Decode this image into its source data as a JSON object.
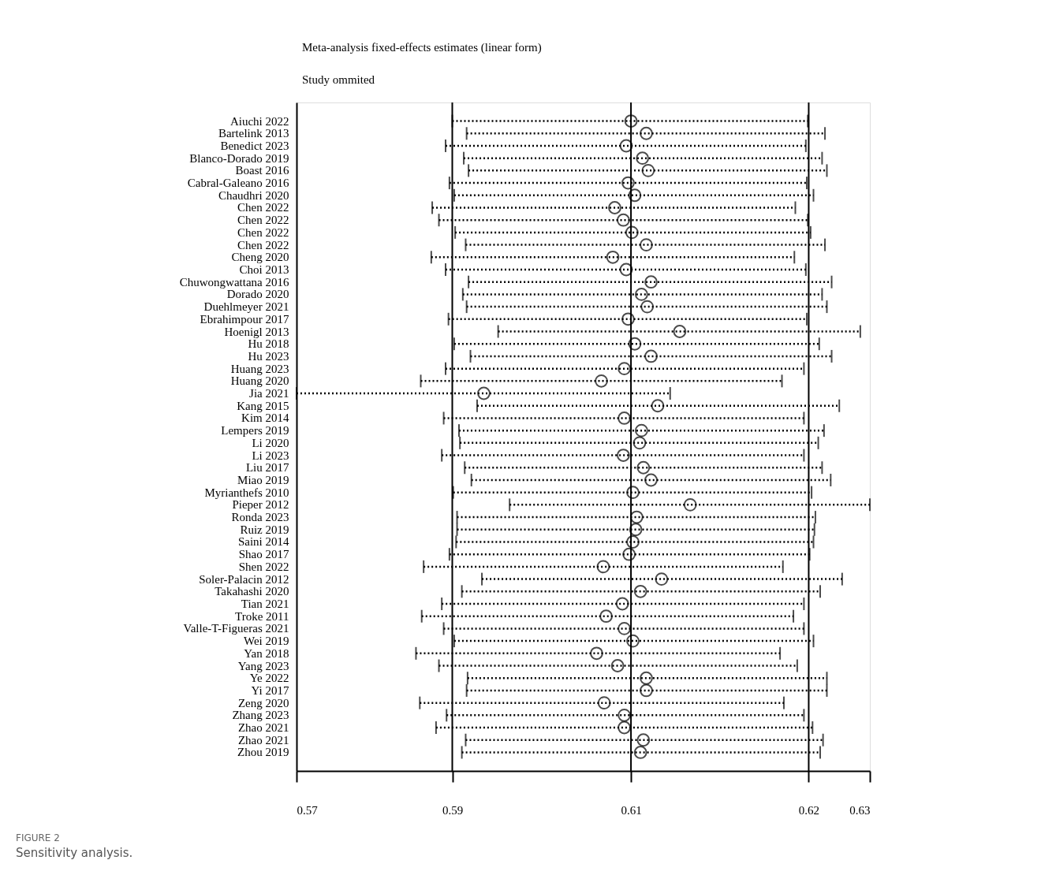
{
  "chart_data": {
    "type": "scatter",
    "orientation": "horizontal",
    "title": "Meta-analysis fixed-effects estimates (linear form)",
    "subtitle": "Study ommited",
    "categories": [
      "Aiuchi 2022",
      "Bartelink 2013",
      "Benedict 2023",
      "Blanco-Dorado 2019",
      "Boast 2016",
      "Cabral-Galeano 2016",
      "Chaudhri 2020",
      "Chen 2022",
      "Chen 2022",
      "Chen 2022",
      "Chen 2022",
      "Cheng 2020",
      "Choi 2013",
      "Chuwongwattana 2016",
      "Dorado 2020",
      "Duehlmeyer 2021",
      "Ebrahimpour 2017",
      "Hoenigl 2013",
      "Hu 2018",
      "Hu 2023",
      "Huang 2023",
      "Huang 2020",
      "Jia 2021",
      "Kang 2015",
      "Kim 2014",
      "Lempers 2019",
      "Li 2020",
      "Li 2023",
      "Liu 2017",
      "Miao 2019",
      "Myrianthefs 2010",
      "Pieper 2012",
      "Ronda 2023",
      "Ruiz 2019",
      "Saini 2014",
      "Shao 2017",
      "Shen 2022",
      "Soler-Palacin 2012",
      "Takahashi 2020",
      "Tian 2021",
      "Troke 2011",
      "Valle-T-Figueras 2021",
      "Wei 2019",
      "Yan 2018",
      "Yang 2023",
      "Ye 2022",
      "Yi 2017",
      "Zeng 2020",
      "Zhang 2023",
      "Zhao 2021",
      "Zhao 2021",
      "Zhou 2019"
    ],
    "values": [
      0.605,
      0.6066,
      0.6045,
      0.6062,
      0.6068,
      0.6047,
      0.6054,
      0.6033,
      0.6042,
      0.6051,
      0.6066,
      0.6031,
      0.6045,
      0.6071,
      0.6061,
      0.6067,
      0.6047,
      0.6101,
      0.6054,
      0.6071,
      0.6043,
      0.6019,
      0.5896,
      0.6078,
      0.6043,
      0.6061,
      0.6059,
      0.6042,
      0.6063,
      0.6071,
      0.6052,
      0.6112,
      0.6056,
      0.6055,
      0.6052,
      0.6048,
      0.6021,
      0.6082,
      0.606,
      0.6041,
      0.6024,
      0.6043,
      0.6052,
      0.6014,
      0.6036,
      0.6066,
      0.6066,
      0.6022,
      0.6043,
      0.6043,
      0.6063,
      0.606
    ],
    "errors": [
      [
        0.5863,
        0.6235
      ],
      [
        0.5878,
        0.6253
      ],
      [
        0.5856,
        0.6233
      ],
      [
        0.5875,
        0.625
      ],
      [
        0.588,
        0.6255
      ],
      [
        0.586,
        0.6234
      ],
      [
        0.5865,
        0.6241
      ],
      [
        0.5842,
        0.6222
      ],
      [
        0.5849,
        0.6235
      ],
      [
        0.5866,
        0.6238
      ],
      [
        0.5877,
        0.6253
      ],
      [
        0.5841,
        0.6221
      ],
      [
        0.5856,
        0.6233
      ],
      [
        0.588,
        0.626
      ],
      [
        0.5874,
        0.625
      ],
      [
        0.5878,
        0.6255
      ],
      [
        0.5859,
        0.6234
      ],
      [
        0.5911,
        0.629
      ],
      [
        0.5865,
        0.6247
      ],
      [
        0.5882,
        0.626
      ],
      [
        0.5856,
        0.6231
      ],
      [
        0.583,
        0.6208
      ],
      [
        0.57,
        0.6091
      ],
      [
        0.5889,
        0.6268
      ],
      [
        0.5854,
        0.6231
      ],
      [
        0.587,
        0.6252
      ],
      [
        0.5871,
        0.6246
      ],
      [
        0.5852,
        0.6231
      ],
      [
        0.5876,
        0.625
      ],
      [
        0.5883,
        0.6259
      ],
      [
        0.5864,
        0.6239
      ],
      [
        0.5923,
        0.63
      ],
      [
        0.5868,
        0.6243
      ],
      [
        0.5868,
        0.6242
      ],
      [
        0.5867,
        0.6241
      ],
      [
        0.586,
        0.6237
      ],
      [
        0.5833,
        0.6209
      ],
      [
        0.5894,
        0.6271
      ],
      [
        0.5873,
        0.6248
      ],
      [
        0.5852,
        0.6231
      ],
      [
        0.5831,
        0.622
      ],
      [
        0.5854,
        0.6231
      ],
      [
        0.5865,
        0.6241
      ],
      [
        0.5825,
        0.6206
      ],
      [
        0.5849,
        0.6224
      ],
      [
        0.5879,
        0.6255
      ],
      [
        0.5878,
        0.6255
      ],
      [
        0.5829,
        0.621
      ],
      [
        0.5857,
        0.6231
      ],
      [
        0.5846,
        0.624
      ],
      [
        0.5877,
        0.6251
      ],
      [
        0.5873,
        0.6248
      ]
    ],
    "color": "#000000",
    "marker": "circle",
    "line_style": "dotted",
    "xlim": [
      0.57,
      0.63
    ],
    "xticks": [
      0.57,
      {
        "value": 0.5863,
        "label": "0.59"
      },
      {
        "value": 0.605,
        "label": "0.61"
      },
      {
        "value": 0.6236,
        "label": "0.62"
      },
      0.63
    ],
    "ref_lines": [
      {
        "axis": "x",
        "value": 0.5863,
        "label": null
      },
      {
        "axis": "x",
        "value": 0.605,
        "label": null
      },
      {
        "axis": "x",
        "value": 0.6236,
        "label": null
      }
    ],
    "grid": false,
    "legend": false,
    "annotations": [
      "FIGURE 2",
      "Sensitivity analysis."
    ]
  }
}
